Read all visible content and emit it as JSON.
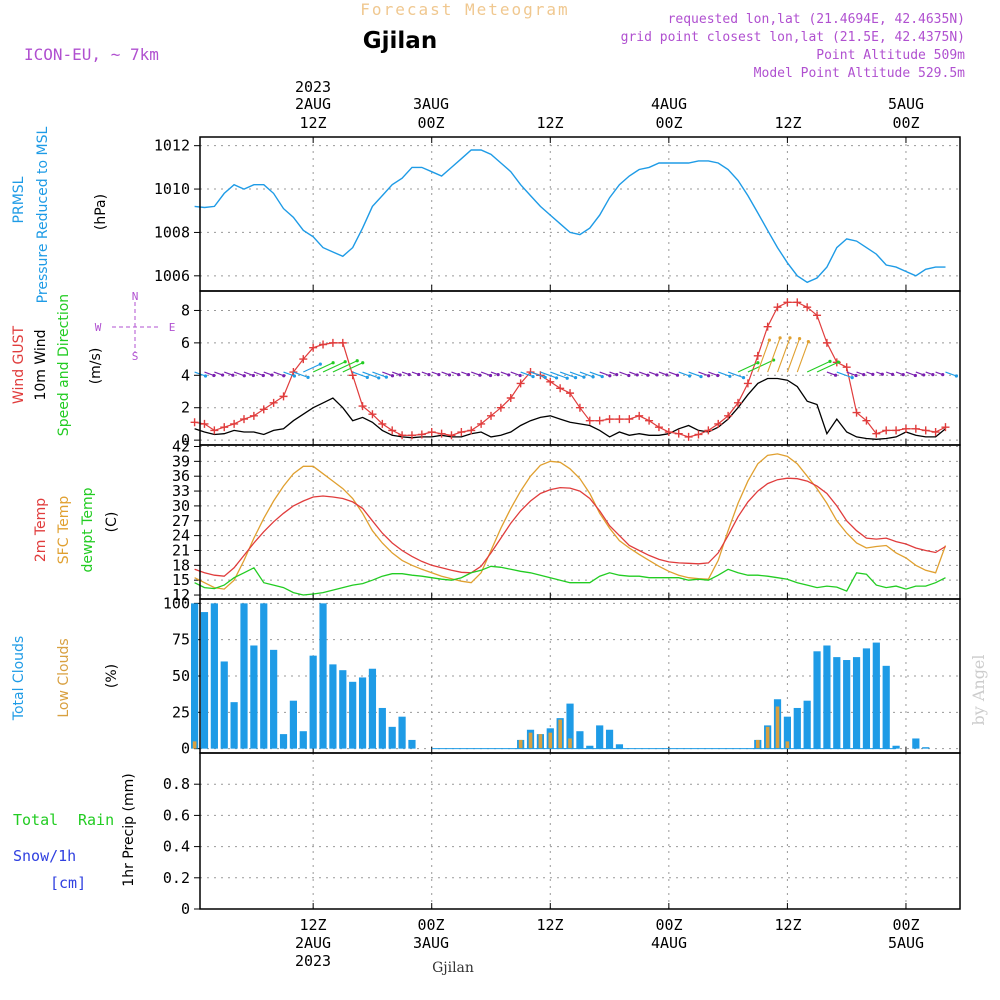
{
  "header": {
    "title": "Forecast Meteogram",
    "station": "Gjilan",
    "model": "ICON-EU,  ~ 7km",
    "requested": "requested lon,lat (21.4694E, 42.4635N)",
    "grid_point": "grid point closest lon,lat (21.5E, 42.4375N)",
    "point_alt": "Point Altitude 509m",
    "model_alt": "Model Point Altitude 529.5m",
    "footer_station": "Gjilan",
    "watermark": "by Angel"
  },
  "colors": {
    "pressure": "#1e9be6",
    "gust": "#e03c3c",
    "wind": "#000000",
    "temp2m": "#e03c3c",
    "sfc": "#e0a030",
    "dewpt": "#22cc22",
    "total_clouds": "#1e9be6",
    "low_clouds": "#d8a040",
    "header_purple": "#b050d0",
    "title_tan": "#f0c890",
    "rain_green": "#22cc22",
    "snow_blue": "#3040e0"
  },
  "time_axis": {
    "top_labels": [
      {
        "hour": 12,
        "lines": [
          "2023",
          "2AUG",
          "12Z"
        ]
      },
      {
        "hour": 24,
        "lines": [
          "3AUG",
          "00Z"
        ]
      },
      {
        "hour": 36,
        "lines": [
          "12Z"
        ]
      },
      {
        "hour": 48,
        "lines": [
          "4AUG",
          "00Z"
        ]
      },
      {
        "hour": 60,
        "lines": [
          "12Z"
        ]
      },
      {
        "hour": 72,
        "lines": [
          "5AUG",
          "00Z"
        ]
      }
    ],
    "bottom_labels": [
      {
        "hour": 12,
        "lines": [
          "12Z",
          "2AUG",
          "2023"
        ]
      },
      {
        "hour": 24,
        "lines": [
          "00Z",
          "3AUG"
        ]
      },
      {
        "hour": 36,
        "lines": [
          "12Z"
        ]
      },
      {
        "hour": 48,
        "lines": [
          "00Z",
          "4AUG"
        ]
      },
      {
        "hour": 60,
        "lines": [
          "12Z"
        ]
      },
      {
        "hour": 72,
        "lines": [
          "00Z",
          "5AUG"
        ]
      }
    ]
  },
  "panel_labels": {
    "pressure": [
      "PRMSL",
      "Pressure Reduced to MSL",
      "(hPa)"
    ],
    "wind": [
      "Wind GUST",
      "10m Wind",
      "Speed and Direction",
      "(m/s)"
    ],
    "compass": {
      "n": "N",
      "s": "S",
      "w": "W",
      "e": "E"
    },
    "temp": [
      "2m Temp",
      "SFC Temp",
      "dewpt Temp",
      "(C)"
    ],
    "clouds": [
      "Total Clouds",
      "Low Clouds",
      "(%)"
    ],
    "precip": {
      "total": "Total",
      "rain": "Rain",
      "snow": "Snow/1h",
      "cm": "[cm]",
      "ylabel": "1hr Precip (mm)"
    }
  },
  "chart_data": [
    {
      "type": "line",
      "title": "PRMSL Pressure Reduced to MSL",
      "ylabel": "(hPa)",
      "ylim": [
        1005.3,
        1012.4
      ],
      "yticks": [
        "1006",
        "1008",
        "1010",
        "1012"
      ],
      "x_hours": [
        0,
        1,
        2,
        3,
        4,
        5,
        6,
        7,
        8,
        9,
        10,
        11,
        12,
        13,
        14,
        15,
        16,
        17,
        18,
        19,
        20,
        21,
        22,
        23,
        24,
        25,
        26,
        27,
        28,
        29,
        30,
        31,
        32,
        33,
        34,
        35,
        36,
        37,
        38,
        39,
        40,
        41,
        42,
        43,
        44,
        45,
        46,
        47,
        48,
        49,
        50,
        51,
        52,
        53,
        54,
        55,
        56,
        57,
        58,
        59,
        60,
        61,
        62,
        63,
        64,
        65,
        66,
        67,
        68,
        69,
        70,
        71,
        72,
        73,
        74,
        75,
        76
      ],
      "values": [
        1009.2,
        1009.15,
        1009.2,
        1009.8,
        1010.2,
        1010.0,
        1010.2,
        1010.2,
        1009.8,
        1009.1,
        1008.7,
        1008.1,
        1007.8,
        1007.3,
        1007.1,
        1006.9,
        1007.3,
        1008.2,
        1009.2,
        1009.7,
        1010.2,
        1010.5,
        1011.0,
        1011.0,
        1010.8,
        1010.6,
        1011.0,
        1011.4,
        1011.8,
        1011.8,
        1011.6,
        1011.2,
        1010.8,
        1010.2,
        1009.7,
        1009.2,
        1008.8,
        1008.4,
        1008.0,
        1007.9,
        1008.2,
        1008.8,
        1009.6,
        1010.2,
        1010.6,
        1010.9,
        1011.0,
        1011.2,
        1011.2,
        1011.2,
        1011.2,
        1011.3,
        1011.3,
        1011.2,
        1010.9,
        1010.4,
        1009.7,
        1008.9,
        1008.1,
        1007.3,
        1006.6,
        1006.0,
        1005.7,
        1005.9,
        1006.4,
        1007.3,
        1007.7,
        1007.6,
        1007.3,
        1007.0,
        1006.5,
        1006.4,
        1006.2,
        1006.0,
        1006.3,
        1006.4,
        1006.4
      ]
    },
    {
      "type": "line",
      "title": "Wind GUST / 10m Wind Speed and Direction",
      "ylabel": "(m/s)",
      "ylim": [
        -0.3,
        9.2
      ],
      "yticks": [
        "0",
        "2",
        "4",
        "6",
        "8"
      ],
      "x_hours": [
        0,
        1,
        2,
        3,
        4,
        5,
        6,
        7,
        8,
        9,
        10,
        11,
        12,
        13,
        14,
        15,
        16,
        17,
        18,
        19,
        20,
        21,
        22,
        23,
        24,
        25,
        26,
        27,
        28,
        29,
        30,
        31,
        32,
        33,
        34,
        35,
        36,
        37,
        38,
        39,
        40,
        41,
        42,
        43,
        44,
        45,
        46,
        47,
        48,
        49,
        50,
        51,
        52,
        53,
        54,
        55,
        56,
        57,
        58,
        59,
        60,
        61,
        62,
        63,
        64,
        65,
        66,
        67,
        68,
        69,
        70,
        71,
        72,
        73,
        74,
        75,
        76
      ],
      "series": [
        {
          "name": "Wind GUST",
          "values": [
            1.1,
            1.0,
            0.6,
            0.8,
            1.0,
            1.3,
            1.5,
            1.9,
            2.3,
            2.7,
            4.2,
            5.0,
            5.7,
            5.9,
            6.0,
            6.0,
            4.0,
            2.1,
            1.6,
            1.0,
            0.6,
            0.3,
            0.3,
            0.35,
            0.5,
            0.4,
            0.3,
            0.5,
            0.6,
            1.0,
            1.5,
            2.0,
            2.6,
            3.5,
            4.2,
            4.0,
            3.6,
            3.2,
            2.9,
            2.0,
            1.2,
            1.2,
            1.3,
            1.3,
            1.3,
            1.5,
            1.2,
            0.8,
            0.5,
            0.4,
            0.2,
            0.35,
            0.6,
            1.0,
            1.5,
            2.3,
            3.5,
            5.2,
            7.0,
            8.2,
            8.5,
            8.5,
            8.2,
            7.7,
            6.0,
            4.8,
            4.5,
            1.7,
            1.2,
            0.4,
            0.6,
            0.6,
            0.7,
            0.7,
            0.6,
            0.5,
            0.8
          ]
        },
        {
          "name": "10m Wind",
          "values": [
            0.7,
            0.5,
            0.35,
            0.4,
            0.6,
            0.5,
            0.5,
            0.35,
            0.6,
            0.7,
            1.2,
            1.6,
            2.0,
            2.3,
            2.6,
            2.0,
            1.2,
            1.4,
            1.1,
            0.6,
            0.3,
            0.2,
            0.15,
            0.2,
            0.2,
            0.3,
            0.2,
            0.2,
            0.4,
            0.5,
            0.2,
            0.3,
            0.5,
            0.9,
            1.2,
            1.4,
            1.5,
            1.3,
            1.1,
            1.0,
            0.9,
            0.6,
            0.2,
            0.5,
            0.3,
            0.4,
            0.3,
            0.3,
            0.4,
            0.7,
            0.9,
            0.6,
            0.5,
            0.8,
            1.3,
            2.0,
            2.8,
            3.5,
            3.8,
            3.8,
            3.7,
            3.3,
            2.4,
            2.2,
            0.4,
            1.3,
            0.5,
            0.2,
            0.1,
            0.05,
            0.1,
            0.2,
            0.5,
            0.3,
            0.2,
            0.2,
            0.7
          ]
        }
      ],
      "compass": [
        "N",
        "S",
        "W",
        "E"
      ]
    },
    {
      "type": "line",
      "title": "2m Temp / SFC Temp / dewpt Temp",
      "ylabel": "(C)",
      "ylim": [
        11.2,
        42.3
      ],
      "yticks": [
        "12",
        "15",
        "18",
        "21",
        "24",
        "27",
        "30",
        "33",
        "36",
        "39",
        "42"
      ],
      "x_hours": [
        0,
        1,
        2,
        3,
        4,
        5,
        6,
        7,
        8,
        9,
        10,
        11,
        12,
        13,
        14,
        15,
        16,
        17,
        18,
        19,
        20,
        21,
        22,
        23,
        24,
        25,
        26,
        27,
        28,
        29,
        30,
        31,
        32,
        33,
        34,
        35,
        36,
        37,
        38,
        39,
        40,
        41,
        42,
        43,
        44,
        45,
        46,
        47,
        48,
        49,
        50,
        51,
        52,
        53,
        54,
        55,
        56,
        57,
        58,
        59,
        60,
        61,
        62,
        63,
        64,
        65,
        66,
        67,
        68,
        69,
        70,
        71,
        72,
        73,
        74,
        75,
        76
      ],
      "series": [
        {
          "name": "2m Temp",
          "values": [
            17.2,
            16.5,
            16.0,
            15.8,
            17.5,
            20.0,
            22.5,
            24.8,
            26.8,
            28.5,
            30.0,
            31.0,
            31.8,
            32.0,
            31.8,
            31.5,
            30.8,
            29.5,
            27.0,
            24.5,
            22.5,
            21.0,
            19.8,
            18.8,
            18.0,
            17.5,
            17.0,
            16.6,
            16.5,
            17.8,
            20.5,
            23.5,
            26.5,
            29.0,
            31.0,
            32.5,
            33.3,
            33.7,
            33.6,
            33.0,
            31.5,
            29.0,
            26.0,
            24.0,
            22.0,
            21.0,
            20.0,
            19.2,
            18.7,
            18.5,
            18.4,
            18.3,
            18.5,
            20.5,
            24.0,
            27.8,
            30.8,
            33.0,
            34.5,
            35.3,
            35.6,
            35.5,
            35.0,
            34.0,
            32.5,
            30.0,
            27.0,
            25.0,
            23.5,
            23.3,
            23.5,
            22.8,
            22.3,
            21.5,
            21.0,
            20.6,
            21.8
          ]
        },
        {
          "name": "SFC Temp",
          "values": [
            15.5,
            14.5,
            13.5,
            13.2,
            15.0,
            19.0,
            23.5,
            27.5,
            31.0,
            34.0,
            36.5,
            38.0,
            38.0,
            36.5,
            35.0,
            33.5,
            31.5,
            28.5,
            25.0,
            22.5,
            20.5,
            19.0,
            18.0,
            17.2,
            16.5,
            15.8,
            15.3,
            14.8,
            14.5,
            16.5,
            21.0,
            25.5,
            29.5,
            33.0,
            36.0,
            38.2,
            39.0,
            38.8,
            37.5,
            35.5,
            32.5,
            28.5,
            25.5,
            23.0,
            21.5,
            20.2,
            19.0,
            17.8,
            16.8,
            16.0,
            15.5,
            15.3,
            15.2,
            19.0,
            25.0,
            30.5,
            35.0,
            38.5,
            40.2,
            40.5,
            40.0,
            38.5,
            36.0,
            33.5,
            30.5,
            27.0,
            24.5,
            22.5,
            21.5,
            21.8,
            22.0,
            20.5,
            19.5,
            18.0,
            17.0,
            16.5,
            22.0
          ]
        },
        {
          "name": "dewpt Temp",
          "values": [
            14.5,
            13.5,
            13.3,
            14.0,
            15.5,
            16.5,
            17.5,
            14.5,
            14.0,
            13.5,
            12.5,
            12.0,
            12.2,
            12.5,
            13.0,
            13.5,
            14.0,
            14.3,
            15.0,
            15.8,
            16.3,
            16.3,
            16.0,
            15.8,
            15.5,
            15.2,
            15.0,
            15.5,
            16.5,
            17.0,
            17.8,
            17.6,
            17.2,
            16.8,
            16.5,
            16.0,
            15.5,
            15.0,
            14.5,
            14.5,
            14.5,
            15.8,
            16.5,
            16.0,
            15.8,
            15.8,
            15.5,
            15.5,
            15.5,
            15.5,
            15.0,
            15.2,
            15.0,
            16.0,
            17.2,
            16.5,
            16.0,
            16.0,
            15.8,
            15.5,
            15.2,
            14.5,
            14.0,
            13.5,
            13.8,
            13.6,
            12.8,
            16.5,
            16.2,
            14.0,
            13.5,
            13.8,
            13.2,
            13.8,
            13.8,
            14.5,
            15.5
          ]
        }
      ]
    },
    {
      "type": "bar",
      "title": "Total Clouds / Low Clouds",
      "ylabel": "(%)",
      "ylim": [
        -3,
        103
      ],
      "yticks": [
        "0",
        "25",
        "50",
        "75",
        "100"
      ],
      "x_hours": [
        0,
        1,
        2,
        3,
        4,
        5,
        6,
        7,
        8,
        9,
        10,
        11,
        12,
        13,
        14,
        15,
        16,
        17,
        18,
        19,
        20,
        21,
        22,
        23,
        24,
        25,
        26,
        27,
        28,
        29,
        30,
        31,
        32,
        33,
        34,
        35,
        36,
        37,
        38,
        39,
        40,
        41,
        42,
        43,
        44,
        45,
        46,
        47,
        48,
        49,
        50,
        51,
        52,
        53,
        54,
        55,
        56,
        57,
        58,
        59,
        60,
        61,
        62,
        63,
        64,
        65,
        66,
        67,
        68,
        69,
        70,
        71,
        72,
        73,
        74,
        75,
        76
      ],
      "series": [
        {
          "name": "Total Clouds",
          "values": [
            100,
            94,
            100,
            60,
            32,
            100,
            71,
            100,
            68,
            10,
            33,
            12,
            64,
            100,
            58,
            54,
            46,
            49,
            55,
            28,
            15,
            22,
            6,
            0,
            0,
            0,
            0,
            0,
            0,
            0,
            0,
            0,
            0,
            6,
            13,
            10,
            14,
            21,
            31,
            12,
            2,
            16,
            13,
            3,
            0,
            0,
            0,
            0,
            0,
            0,
            0,
            0,
            0,
            0,
            0,
            0,
            0,
            6,
            16,
            34,
            22,
            28,
            33,
            67,
            71,
            63,
            61,
            63,
            69,
            73,
            57,
            2,
            0,
            7,
            1,
            0,
            0
          ]
        },
        {
          "name": "Low Clouds",
          "values": [
            5,
            0,
            0,
            0,
            0,
            0,
            0,
            0,
            0,
            0,
            0,
            0,
            0,
            0,
            0,
            0,
            0,
            0,
            0,
            0,
            0,
            0,
            0,
            0,
            0,
            0,
            0,
            0,
            0,
            0,
            0,
            0,
            0,
            6,
            11,
            10,
            11,
            20,
            7,
            0,
            0,
            0,
            0,
            0,
            0,
            0,
            0,
            0,
            0,
            0,
            0,
            0,
            0,
            0,
            0,
            0,
            0,
            6,
            15,
            29,
            5,
            0,
            0,
            0,
            0,
            0,
            0,
            0,
            0,
            0,
            0,
            0,
            0,
            0,
            0,
            0,
            0
          ]
        }
      ]
    },
    {
      "type": "bar",
      "title": "Total Rain / Snow 1h",
      "ylabel": "1hr Precip (mm)",
      "ylim": [
        0,
        1.0
      ],
      "yticks": [
        "0",
        "0.2",
        "0.4",
        "0.6",
        "0.8"
      ],
      "x_hours": [
        0,
        76
      ],
      "series": [
        {
          "name": "Total Rain",
          "values": [
            0,
            0
          ]
        },
        {
          "name": "Snow/1h",
          "values": [
            0,
            0
          ]
        }
      ]
    }
  ]
}
